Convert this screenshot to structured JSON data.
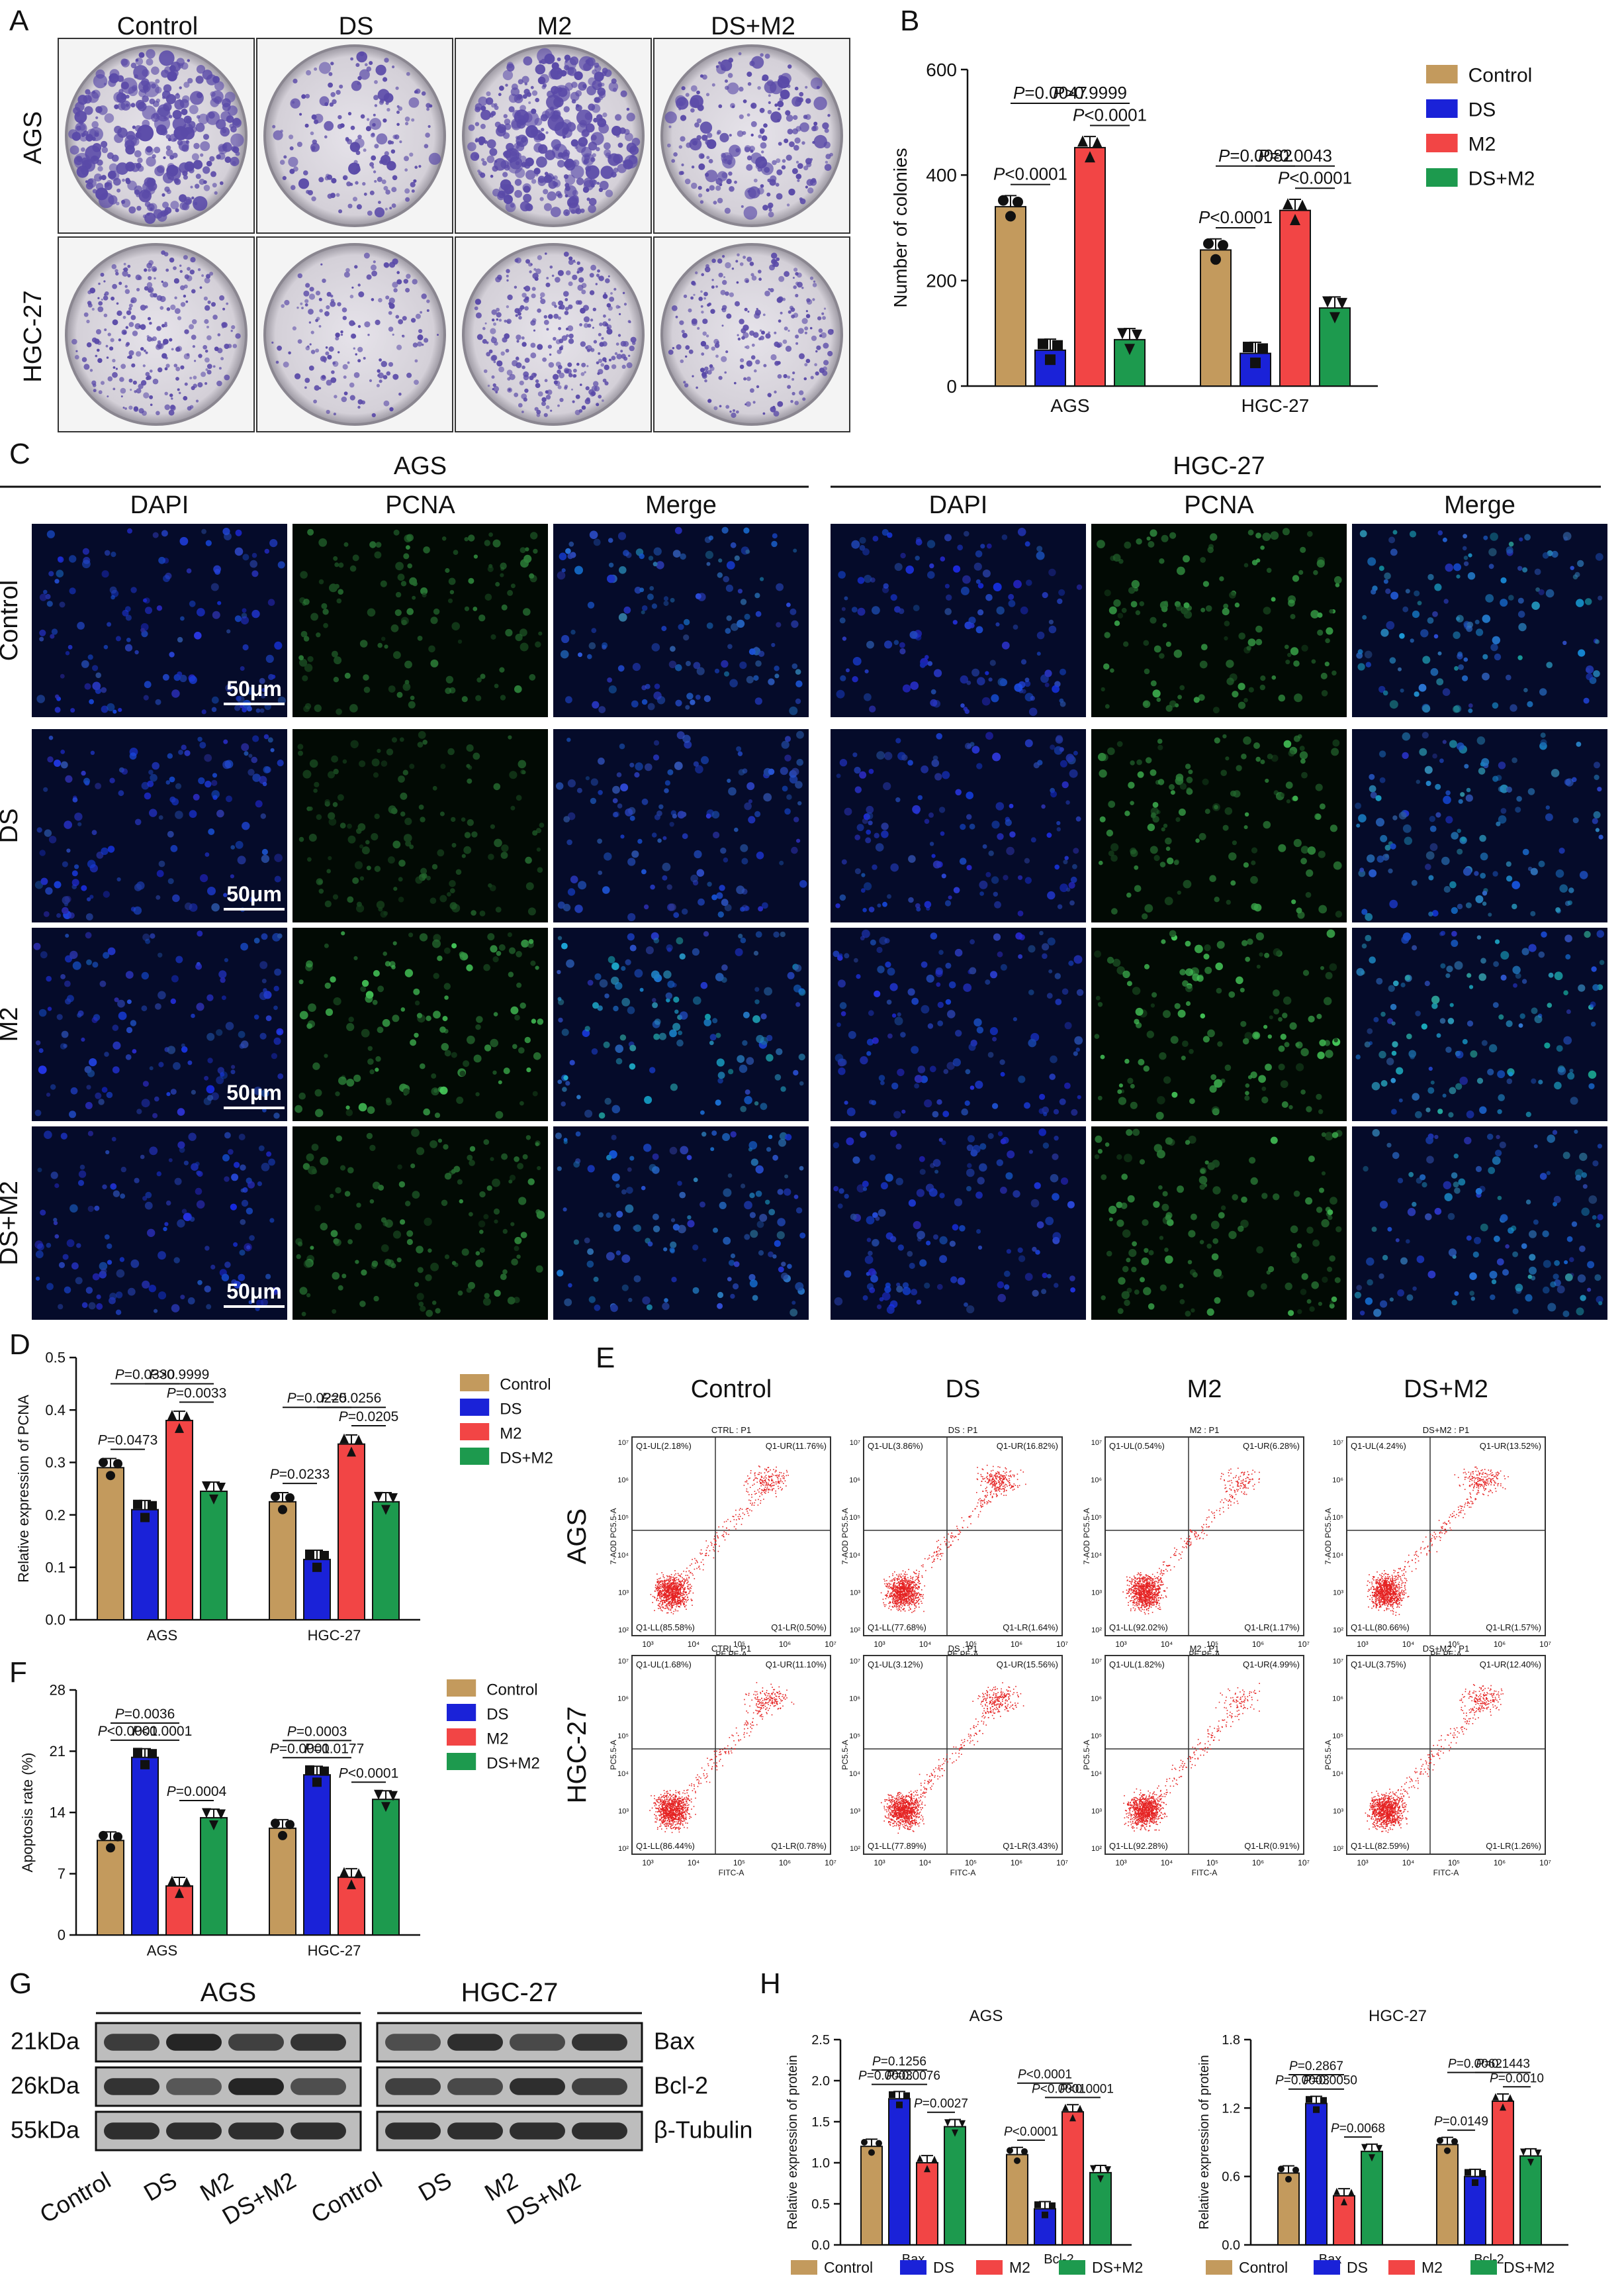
{
  "colors": {
    "control": "#c39a5d",
    "ds": "#1a22d8",
    "m2": "#f24545",
    "dsm2": "#1d9a4e",
    "dapi": "#0a1760",
    "pcna": "#1c8a3a",
    "merge": "#0f5a7e",
    "plate": "#5a4aa8",
    "dot": "#e52222"
  },
  "groups": [
    "Control",
    "DS",
    "M2",
    "DS+M2"
  ],
  "cells": [
    "AGS",
    "HGC-27"
  ],
  "panelA": {
    "letter": "A",
    "cols": [
      "Control",
      "DS",
      "M2",
      "DS+M2"
    ],
    "rows": [
      "AGS",
      "HGC-27"
    ],
    "density": [
      [
        0.95,
        0.35,
        1.0,
        0.55
      ],
      [
        0.7,
        0.3,
        0.85,
        0.6
      ]
    ]
  },
  "panelC": {
    "letter": "C",
    "cells": [
      "AGS",
      "HGC-27"
    ],
    "channels": [
      "DAPI",
      "PCNA",
      "Merge"
    ],
    "rows": [
      "Control",
      "DS",
      "M2",
      "DS+M2"
    ],
    "scale_bar": "50μm",
    "pcna_brightness": {
      "AGS": [
        0.45,
        0.25,
        0.85,
        0.5
      ],
      "HGC-27": [
        0.75,
        0.7,
        0.9,
        0.7
      ]
    }
  },
  "panelE": {
    "letter": "E",
    "cols": [
      "Control",
      "DS",
      "M2",
      "DS+M2"
    ],
    "rows": [
      "AGS",
      "HGC-27"
    ],
    "titles": [
      [
        "CTRL : P1",
        "DS : P1",
        "M2 : P1",
        "DS+M2 : P1"
      ],
      [
        "CTRL : P1",
        "DS : P1",
        "M2 : P1",
        "DS+M2 : P1"
      ]
    ],
    "ylabels": [
      "7-AOD PC5.5-A",
      "PC5.5-A"
    ],
    "xlabels": [
      "PE PE-A",
      "FITC-A"
    ],
    "quads": [
      [
        [
          "Q1-UL(2.18%)",
          "Q1-UR(11.76%)",
          "Q1-LL(85.58%)",
          "Q1-LR(0.50%)"
        ],
        [
          "Q1-UL(3.86%)",
          "Q1-UR(16.82%)",
          "Q1-LL(77.68%)",
          "Q1-LR(1.64%)"
        ],
        [
          "Q1-UL(0.54%)",
          "Q1-UR(6.28%)",
          "Q1-LL(92.02%)",
          "Q1-LR(1.17%)"
        ],
        [
          "Q1-UL(4.24%)",
          "Q1-UR(13.52%)",
          "Q1-LL(80.66%)",
          "Q1-LR(1.57%)"
        ]
      ],
      [
        [
          "Q1-UL(1.68%)",
          "Q1-UR(11.10%)",
          "Q1-LL(86.44%)",
          "Q1-LR(0.78%)"
        ],
        [
          "Q1-UL(3.12%)",
          "Q1-UR(15.56%)",
          "Q1-LL(77.89%)",
          "Q1-LR(3.43%)"
        ],
        [
          "Q1-UL(1.82%)",
          "Q1-UR(4.99%)",
          "Q1-LL(92.28%)",
          "Q1-LR(0.91%)"
        ],
        [
          "Q1-UL(3.75%)",
          "Q1-UR(12.40%)",
          "Q1-LL(82.59%)",
          "Q1-LR(1.26%)"
        ]
      ]
    ]
  },
  "panelG": {
    "letter": "G",
    "cells": [
      "AGS",
      "HGC-27"
    ],
    "proteins": [
      {
        "kda": "21kDa",
        "name": "Bax",
        "int": [
          [
            0.75,
            1.0,
            0.7,
            0.85
          ],
          [
            0.55,
            0.9,
            0.6,
            0.85
          ]
        ]
      },
      {
        "kda": "26kDa",
        "name": "Bcl-2",
        "int": [
          [
            0.85,
            0.45,
            1.0,
            0.55
          ],
          [
            0.7,
            0.6,
            0.9,
            0.7
          ]
        ]
      },
      {
        "kda": "55kDa",
        "name": "β-Tubulin",
        "int": [
          [
            0.9,
            0.9,
            0.9,
            0.9
          ],
          [
            0.9,
            0.9,
            0.9,
            0.9
          ]
        ]
      }
    ],
    "lanes": [
      "Control",
      "DS",
      "M2",
      "DS+M2"
    ]
  },
  "chart_data": [
    {
      "panel": "B",
      "type": "bar",
      "ylabel": "Number of colonies",
      "ylim": [
        0,
        600
      ],
      "yticks": [
        0,
        200,
        400,
        600
      ],
      "categories": [
        "AGS",
        "HGC-27"
      ],
      "series": [
        {
          "name": "Control",
          "values": [
            340,
            258
          ]
        },
        {
          "name": "DS",
          "values": [
            68,
            62
          ]
        },
        {
          "name": "M2",
          "values": [
            452,
            333
          ]
        },
        {
          "name": "DS+M2",
          "values": [
            88,
            148
          ]
        }
      ],
      "legend": [
        "Control",
        "DS",
        "M2",
        "DS+M2"
      ],
      "annotations": [
        {
          "i": 0,
          "a": 0,
          "b": 1,
          "text": "P<0.0001"
        },
        {
          "i": 0,
          "a": 0,
          "b": 2,
          "text": "P=0.0047"
        },
        {
          "i": 0,
          "a": 2,
          "b": 3,
          "text": "P<0.0001"
        },
        {
          "i": 0,
          "a": 1,
          "b": 3,
          "text": "P>0.9999"
        },
        {
          "i": 1,
          "a": 0,
          "b": 1,
          "text": "P<0.0001"
        },
        {
          "i": 1,
          "a": 0,
          "b": 2,
          "text": "P=0.0082"
        },
        {
          "i": 1,
          "a": 2,
          "b": 3,
          "text": "P<0.0001"
        },
        {
          "i": 1,
          "a": 1,
          "b": 3,
          "text": "P=0.0043"
        }
      ]
    },
    {
      "panel": "D",
      "type": "bar",
      "ylabel": "Relative expression of PCNA",
      "ylim": [
        0,
        0.5
      ],
      "yticks": [
        "0.0",
        "0.1",
        "0.2",
        "0.3",
        "0.4",
        "0.5"
      ],
      "categories": [
        "AGS",
        "HGC-27"
      ],
      "series": [
        {
          "name": "Control",
          "values": [
            0.29,
            0.225
          ]
        },
        {
          "name": "DS",
          "values": [
            0.21,
            0.115
          ]
        },
        {
          "name": "M2",
          "values": [
            0.38,
            0.335
          ]
        },
        {
          "name": "DS+M2",
          "values": [
            0.245,
            0.225
          ]
        }
      ],
      "legend": [
        "Control",
        "DS",
        "M2",
        "DS+M2"
      ],
      "annotations": [
        {
          "i": 0,
          "a": 0,
          "b": 1,
          "text": "P=0.0473"
        },
        {
          "i": 0,
          "a": 0,
          "b": 2,
          "text": "P=0.0330"
        },
        {
          "i": 0,
          "a": 2,
          "b": 3,
          "text": "P=0.0033"
        },
        {
          "i": 0,
          "a": 1,
          "b": 3,
          "text": "P>0.9999"
        },
        {
          "i": 1,
          "a": 0,
          "b": 1,
          "text": "P=0.0233"
        },
        {
          "i": 1,
          "a": 0,
          "b": 2,
          "text": "P=0.0225"
        },
        {
          "i": 1,
          "a": 2,
          "b": 3,
          "text": "P=0.0205"
        },
        {
          "i": 1,
          "a": 1,
          "b": 3,
          "text": "P=0.0256"
        }
      ]
    },
    {
      "panel": "F",
      "type": "bar",
      "ylabel": "Apoptosis rate (%)",
      "ylim": [
        0,
        28
      ],
      "yticks": [
        0,
        7,
        14,
        21,
        28
      ],
      "categories": [
        "AGS",
        "HGC-27"
      ],
      "series": [
        {
          "name": "Control",
          "values": [
            10.8,
            12.2
          ]
        },
        {
          "name": "DS",
          "values": [
            20.3,
            18.3
          ]
        },
        {
          "name": "M2",
          "values": [
            5.6,
            6.6
          ]
        },
        {
          "name": "DS+M2",
          "values": [
            13.4,
            15.5
          ]
        }
      ],
      "legend": [
        "Control",
        "DS",
        "M2",
        "DS+M2"
      ],
      "annotations": [
        {
          "i": 0,
          "a": 0,
          "b": 1,
          "text": "P<0.0001"
        },
        {
          "i": 0,
          "a": 1,
          "b": 2,
          "text": "P<0.0001"
        },
        {
          "i": 0,
          "a": 2,
          "b": 3,
          "text": "P=0.0004"
        },
        {
          "i": 0,
          "a": 0,
          "b": 2,
          "text": "P=0.0036"
        },
        {
          "i": 1,
          "a": 0,
          "b": 1,
          "text": "P=0.0001"
        },
        {
          "i": 1,
          "a": 1,
          "b": 2,
          "text": "P=0.0177"
        },
        {
          "i": 1,
          "a": 2,
          "b": 3,
          "text": "P<0.0001"
        },
        {
          "i": 1,
          "a": 0,
          "b": 2,
          "text": "P=0.0003"
        }
      ]
    },
    {
      "panel": "H",
      "type": "bar",
      "title": "AGS",
      "ylabel": "Relative expression of protein",
      "ylim": [
        0,
        2.5
      ],
      "yticks": [
        "0.0",
        "0.5",
        "1.0",
        "1.5",
        "2.0",
        "2.5"
      ],
      "categories": [
        "Bax",
        "Bcl-2"
      ],
      "series": [
        {
          "name": "Control",
          "values": [
            1.2,
            1.1
          ]
        },
        {
          "name": "DS",
          "values": [
            1.78,
            0.44
          ]
        },
        {
          "name": "M2",
          "values": [
            1.0,
            1.62
          ]
        },
        {
          "name": "DS+M2",
          "values": [
            1.44,
            0.88
          ]
        }
      ],
      "annotations": [
        {
          "i": 0,
          "a": 0,
          "b": 1,
          "text": "P=0.0003"
        },
        {
          "i": 0,
          "a": 1,
          "b": 2,
          "text": "P=0.0076"
        },
        {
          "i": 0,
          "a": 2,
          "b": 3,
          "text": "P=0.0027"
        },
        {
          "i": 0,
          "a": 0,
          "b": 2,
          "text": "P=0.1256"
        },
        {
          "i": 1,
          "a": 0,
          "b": 1,
          "text": "P<0.0001"
        },
        {
          "i": 1,
          "a": 1,
          "b": 2,
          "text": "P<0.0001"
        },
        {
          "i": 1,
          "a": 2,
          "b": 3,
          "text": "P<0.0001"
        },
        {
          "i": 1,
          "a": 0,
          "b": 2,
          "text": "P<0.0001"
        }
      ]
    },
    {
      "panel": "H",
      "type": "bar",
      "title": "HGC-27",
      "ylabel": "Relative expression of protein",
      "ylim": [
        0,
        1.8
      ],
      "yticks": [
        "0.0",
        "0.6",
        "1.2",
        "1.8"
      ],
      "categories": [
        "Bax",
        "Bcl-2"
      ],
      "series": [
        {
          "name": "Control",
          "values": [
            0.63,
            0.88
          ]
        },
        {
          "name": "DS",
          "values": [
            1.24,
            0.6
          ]
        },
        {
          "name": "M2",
          "values": [
            0.43,
            1.26
          ]
        },
        {
          "name": "DS+M2",
          "values": [
            0.82,
            0.78
          ]
        }
      ],
      "annotations": [
        {
          "i": 0,
          "a": 0,
          "b": 1,
          "text": "P=0.0003"
        },
        {
          "i": 0,
          "a": 1,
          "b": 2,
          "text": "P=0.0050"
        },
        {
          "i": 0,
          "a": 2,
          "b": 3,
          "text": "P=0.0068"
        },
        {
          "i": 0,
          "a": 0,
          "b": 2,
          "text": "P=0.2867"
        },
        {
          "i": 1,
          "a": 0,
          "b": 1,
          "text": "P=0.0149"
        },
        {
          "i": 1,
          "a": 0,
          "b": 2,
          "text": "P=0.0062"
        },
        {
          "i": 1,
          "a": 2,
          "b": 3,
          "text": "P=0.0010"
        },
        {
          "i": 1,
          "a": 1,
          "b": 3,
          "text": "P=0.1443"
        }
      ]
    }
  ],
  "bottom_legend": [
    "Control",
    "DS",
    "M2",
    "DS+M2"
  ]
}
